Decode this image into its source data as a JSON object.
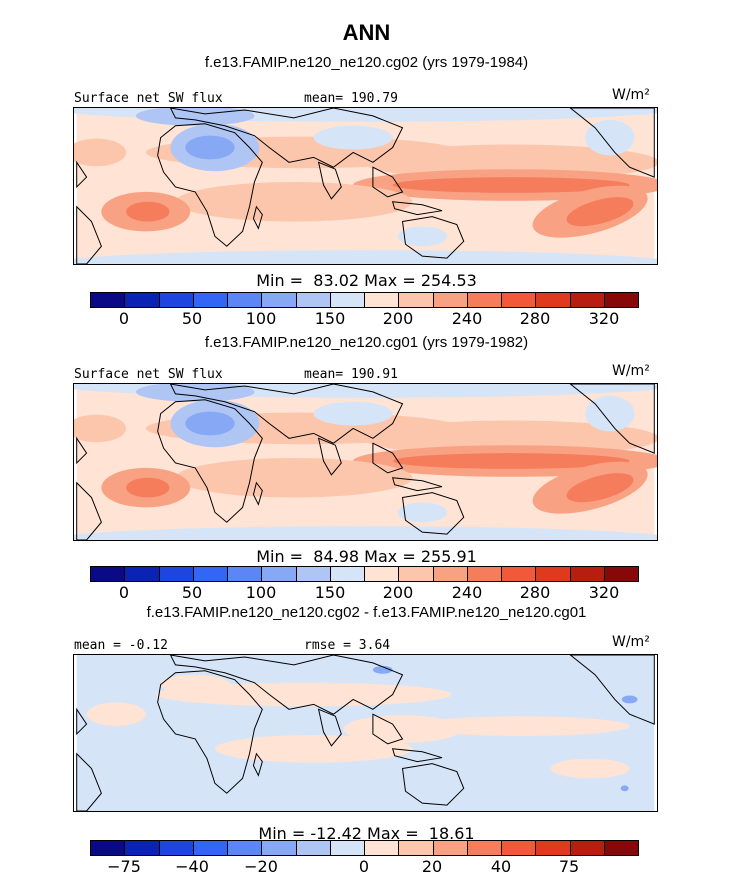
{
  "figure": {
    "title": "ANN",
    "units": "W/m²"
  },
  "colorbar_colors": [
    "#0a0a87",
    "#0a23b4",
    "#1f45e0",
    "#3366f5",
    "#5c86f5",
    "#86a8f5",
    "#afc6f5",
    "#d6e4f7",
    "#ffe3d4",
    "#fcc6ac",
    "#f9a283",
    "#f57d5c",
    "#f2593a",
    "#e03a1e",
    "#b81e10",
    "#870808"
  ],
  "chart_data": [
    {
      "type": "heatmap",
      "subtitle": "f.e13.FAMIP.ne120_ne120.cg02 (yrs 1979-1984)",
      "left_label": "Surface net SW flux",
      "center_label": "mean= 190.79",
      "right_label": "W/m²",
      "min_label": "Min =  83.02",
      "max_label": "Max = 254.53",
      "min": 83.02,
      "max": 254.53,
      "mean": 190.79,
      "colorbar_ticks": [
        "0",
        "50",
        "100",
        "150",
        "200",
        "240",
        "280",
        "320"
      ]
    },
    {
      "type": "heatmap",
      "subtitle": "f.e13.FAMIP.ne120_ne120.cg01 (yrs 1979-1982)",
      "left_label": "Surface net SW flux",
      "center_label": "mean= 190.91",
      "right_label": "W/m²",
      "min_label": "Min =  84.98",
      "max_label": "Max = 255.91",
      "min": 84.98,
      "max": 255.91,
      "mean": 190.91,
      "colorbar_ticks": [
        "0",
        "50",
        "100",
        "150",
        "200",
        "240",
        "280",
        "320"
      ]
    },
    {
      "type": "heatmap",
      "subtitle": "f.e13.FAMIP.ne120_ne120.cg02 - f.e13.FAMIP.ne120_ne120.cg01",
      "left_label": "mean =  -0.12",
      "center_label": "rmse =   3.64",
      "right_label": "W/m²",
      "min_label": "Min = -12.42",
      "max_label": "Max =  18.61",
      "min": -12.42,
      "max": 18.61,
      "mean": -0.12,
      "rmse": 3.64,
      "colorbar_ticks": [
        "-75",
        "-40",
        "-20",
        "0",
        "20",
        "40",
        "75"
      ]
    }
  ]
}
